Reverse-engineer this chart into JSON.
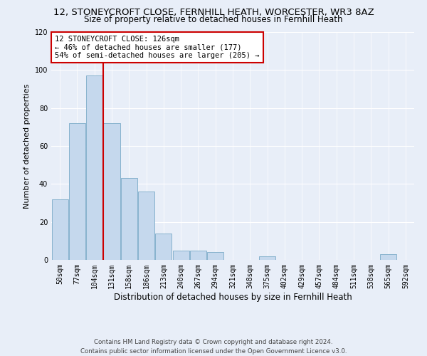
{
  "title": "12, STONEYCROFT CLOSE, FERNHILL HEATH, WORCESTER, WR3 8AZ",
  "subtitle": "Size of property relative to detached houses in Fernhill Heath",
  "xlabel": "Distribution of detached houses by size in Fernhill Heath",
  "ylabel": "Number of detached properties",
  "bar_labels": [
    "50sqm",
    "77sqm",
    "104sqm",
    "131sqm",
    "158sqm",
    "186sqm",
    "213sqm",
    "240sqm",
    "267sqm",
    "294sqm",
    "321sqm",
    "348sqm",
    "375sqm",
    "402sqm",
    "429sqm",
    "457sqm",
    "484sqm",
    "511sqm",
    "538sqm",
    "565sqm",
    "592sqm"
  ],
  "bar_values": [
    32,
    72,
    97,
    72,
    43,
    36,
    14,
    5,
    5,
    4,
    0,
    0,
    2,
    0,
    0,
    0,
    0,
    0,
    0,
    3,
    0
  ],
  "bar_color": "#c5d8ed",
  "bar_edgecolor": "#7aaac8",
  "vline_x": 2.5,
  "annotation_text": "12 STONEYCROFT CLOSE: 126sqm\n← 46% of detached houses are smaller (177)\n54% of semi-detached houses are larger (205) →",
  "annotation_box_edgecolor": "#cc0000",
  "vline_color": "#cc0000",
  "ylim": [
    0,
    120
  ],
  "yticks": [
    0,
    20,
    40,
    60,
    80,
    100,
    120
  ],
  "background_color": "#e8eef8",
  "plot_background": "#e8eef8",
  "grid_color": "#ffffff",
  "footer_line1": "Contains HM Land Registry data © Crown copyright and database right 2024.",
  "footer_line2": "Contains public sector information licensed under the Open Government Licence v3.0.",
  "title_fontsize": 9.5,
  "subtitle_fontsize": 8.5,
  "xlabel_fontsize": 8.5,
  "ylabel_fontsize": 8,
  "tick_fontsize": 7,
  "annotation_fontsize": 7.5
}
